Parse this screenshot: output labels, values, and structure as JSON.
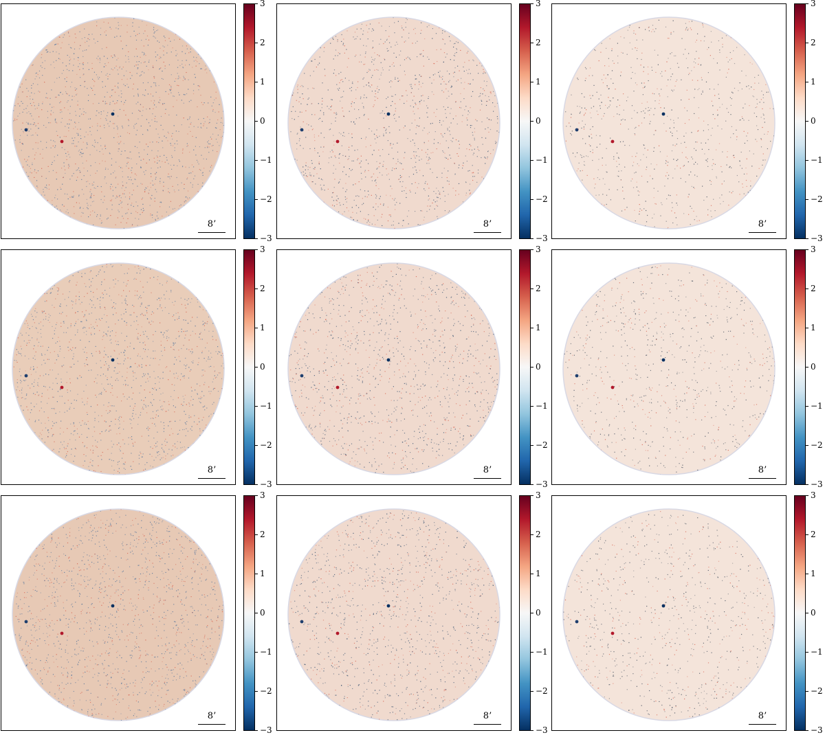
{
  "colormap": {
    "name": "RdBu_r",
    "stops": [
      "#053061",
      "#2166ac",
      "#4393c3",
      "#92c5de",
      "#d1e5f0",
      "#f7f7f7",
      "#fddbc7",
      "#f4a582",
      "#d6604d",
      "#b2182b",
      "#67001f"
    ]
  },
  "colorbar_ticks": [
    "3",
    "2",
    "1",
    "0",
    "−1",
    "−2",
    "−3"
  ],
  "scalebar_label": "8’",
  "panels": [
    {
      "row": 1,
      "col": 1,
      "tint": "#e7c9b5",
      "noise": "#4b6f9a",
      "density": 0.55
    },
    {
      "row": 1,
      "col": 2,
      "tint": "#f0dace",
      "noise": "#35506f",
      "density": 0.45
    },
    {
      "row": 1,
      "col": 3,
      "tint": "#f4e4da",
      "noise": "#3e4a5a",
      "density": 0.3
    },
    {
      "row": 2,
      "col": 1,
      "tint": "#e9cdb9",
      "noise": "#4b6f9a",
      "density": 0.55
    },
    {
      "row": 2,
      "col": 2,
      "tint": "#f0dace",
      "noise": "#35506f",
      "density": 0.45
    },
    {
      "row": 2,
      "col": 3,
      "tint": "#f4e4da",
      "noise": "#3e4a5a",
      "density": 0.3
    },
    {
      "row": 3,
      "col": 1,
      "tint": "#e7c9b5",
      "noise": "#4b6f9a",
      "density": 0.55
    },
    {
      "row": 3,
      "col": 2,
      "tint": "#f0dace",
      "noise": "#35506f",
      "density": 0.45
    },
    {
      "row": 3,
      "col": 3,
      "tint": "#f4e4da",
      "noise": "#3e4a5a",
      "density": 0.3
    }
  ]
}
